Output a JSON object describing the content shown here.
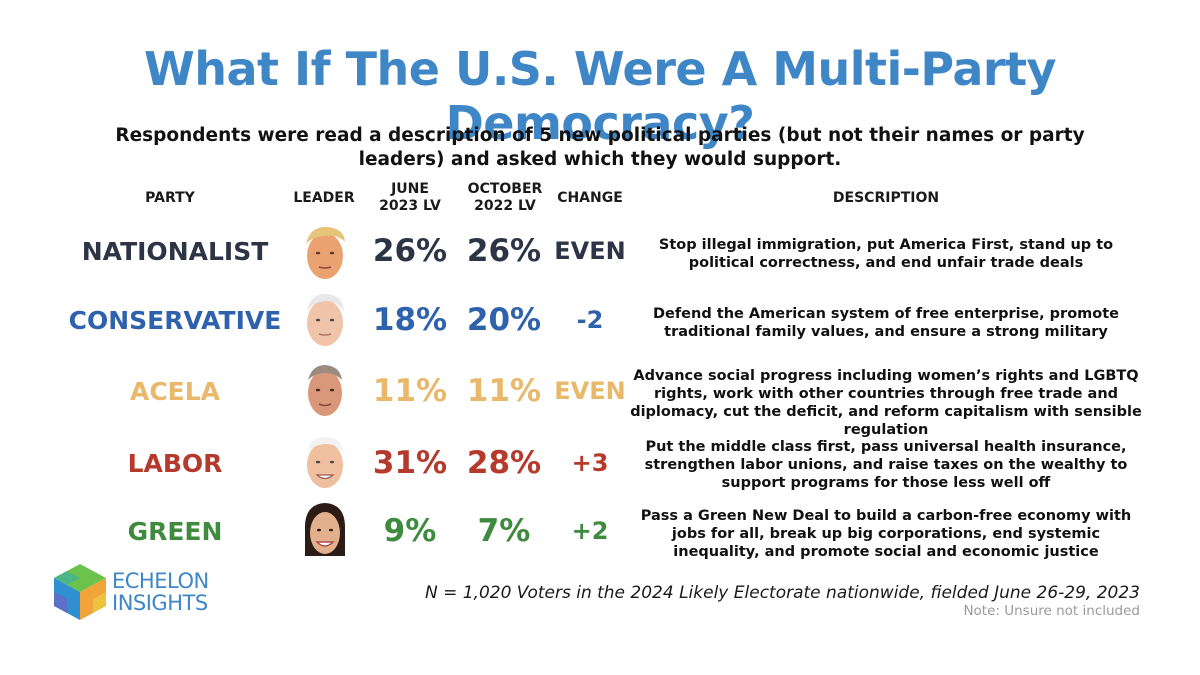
{
  "title": "What If The U.S. Were A Multi-Party Democracy?",
  "subtitle": "Respondents were read a description of 5 new political parties (but not their names or party leaders) and asked which they would support.",
  "headers": {
    "party": "PARTY",
    "leader": "LEADER",
    "june_line1": "JUNE",
    "june_line2": "2023 LV",
    "oct_line1": "OCTOBER",
    "oct_line2": "2022 LV",
    "change": "CHANGE",
    "description": "DESCRIPTION"
  },
  "colors": {
    "title": "#3f86c6",
    "nationalist": "#2c3445",
    "conservative": "#2f62ad",
    "acela": "#e9b86b",
    "labor": "#b53a2c",
    "green": "#3e8a3e"
  },
  "chart_data": {
    "type": "table",
    "columns": [
      "PARTY",
      "LEADER",
      "JUNE 2023 LV",
      "OCTOBER 2022 LV",
      "CHANGE",
      "DESCRIPTION"
    ],
    "rows": [
      {
        "party": "NATIONALIST",
        "leader_icon": "trump-portrait",
        "june_2023": "26%",
        "october_2022": "26%",
        "change": "EVEN",
        "description": "Stop illegal immigration, put America First, stand up to political correctness, and end unfair trade deals"
      },
      {
        "party": "CONSERVATIVE",
        "leader_icon": "pence-portrait",
        "june_2023": "18%",
        "october_2022": "20%",
        "change": "-2",
        "description": "Defend the American system of free enterprise, promote traditional family values, and ensure a strong military"
      },
      {
        "party": "ACELA",
        "leader_icon": "bloomberg-portrait",
        "june_2023": "11%",
        "october_2022": "11%",
        "change": "EVEN",
        "description": "Advance social progress including women’s rights and LGBTQ rights, work with other countries through free trade and diplomacy, cut the deficit, and reform capitalism with sensible regulation"
      },
      {
        "party": "LABOR",
        "leader_icon": "biden-portrait",
        "june_2023": "31%",
        "october_2022": "28%",
        "change": "+3",
        "description": "Put the middle class first, pass universal health insurance, strengthen labor unions, and raise taxes on the wealthy to support programs for those less well off"
      },
      {
        "party": "GREEN",
        "leader_icon": "aoc-portrait",
        "june_2023": "9%",
        "october_2022": "7%",
        "change": "+2",
        "description": "Pass a Green New Deal to build a carbon-free economy with jobs for all, break up big corporations, end systemic inequality, and promote social and economic justice"
      }
    ]
  },
  "logo": {
    "line1": "ECHELON",
    "line2": "INSIGHTS"
  },
  "footnote": "N = 1,020 Voters in the 2024 Likely Electorate nationwide, fielded June 26-29, 2023",
  "note": "Note: Unsure not included"
}
